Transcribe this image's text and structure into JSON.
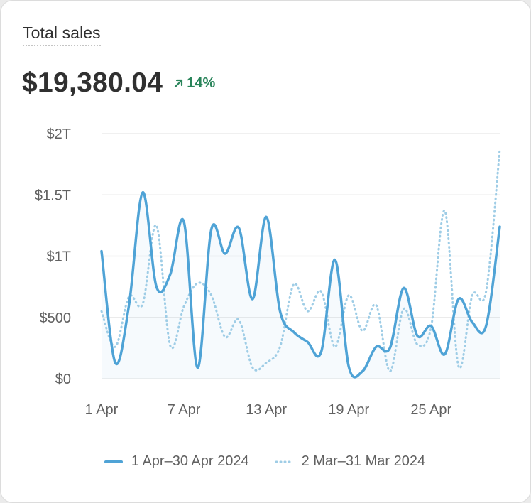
{
  "card": {
    "title": "Total sales",
    "total": "$19,380.04",
    "change": "14%",
    "change_icon": "arrow-up-right-icon"
  },
  "colors": {
    "primary": "#4fa3d6",
    "comparison": "#9fcde6",
    "positive": "#29845a",
    "grid": "#ebebeb",
    "axis_text": "#616161"
  },
  "chart_data": {
    "type": "line",
    "title": "Total sales",
    "xlabel": "",
    "ylabel": "",
    "ylim": [
      0,
      2000
    ],
    "y_ticks": [
      {
        "value": 0,
        "label": "$0"
      },
      {
        "value": 500,
        "label": "$500"
      },
      {
        "value": 1000,
        "label": "$1T"
      },
      {
        "value": 1500,
        "label": "$1.5T"
      },
      {
        "value": 2000,
        "label": "$2T"
      }
    ],
    "x_ticks": [
      {
        "index": 0,
        "label": "1 Apr"
      },
      {
        "index": 6,
        "label": "7 Apr"
      },
      {
        "index": 12,
        "label": "13 Apr"
      },
      {
        "index": 18,
        "label": "19 Apr"
      },
      {
        "index": 24,
        "label": "25 Apr"
      }
    ],
    "grid": true,
    "legend_position": "bottom",
    "series": [
      {
        "name": "1 Apr–30 Apr 2024",
        "style": "solid",
        "values": [
          1040,
          130,
          600,
          1520,
          750,
          850,
          1280,
          90,
          1220,
          1020,
          1230,
          650,
          1320,
          550,
          380,
          300,
          220,
          970,
          100,
          60,
          260,
          250,
          740,
          350,
          430,
          200,
          650,
          460,
          430,
          1240
        ]
      },
      {
        "name": "2 Mar–31 Mar 2024",
        "style": "dotted",
        "values": [
          550,
          260,
          670,
          610,
          1250,
          270,
          590,
          780,
          680,
          340,
          480,
          90,
          130,
          260,
          770,
          550,
          710,
          260,
          680,
          390,
          600,
          60,
          570,
          280,
          420,
          1370,
          100,
          680,
          710,
          1870
        ]
      }
    ]
  }
}
